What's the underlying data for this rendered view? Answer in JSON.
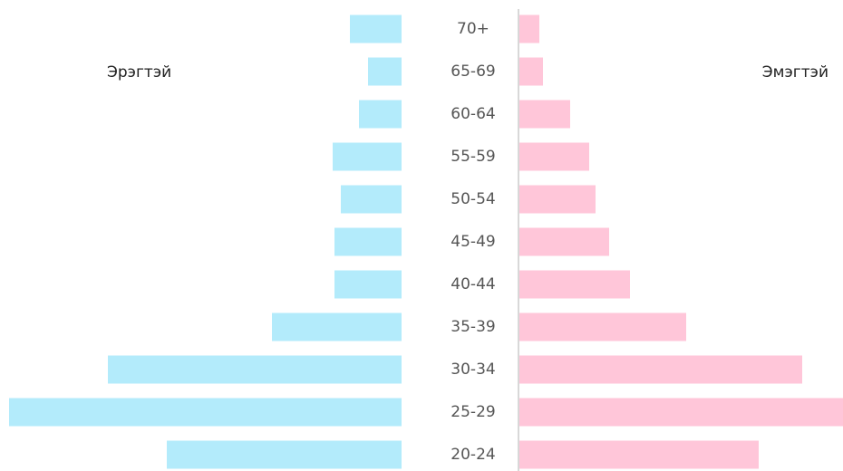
{
  "chart_data": {
    "type": "bar",
    "orientation": "horizontal",
    "layout": "population-pyramid",
    "categories": [
      "70+",
      "65-69",
      "60-64",
      "55-59",
      "50-54",
      "45-49",
      "40-44",
      "35-39",
      "30-34",
      "25-29",
      "20-24"
    ],
    "series": [
      {
        "name": "Эрэгтэй",
        "side": "left",
        "color": "#b3ebfb",
        "values": [
          57,
          37,
          47,
          76,
          67,
          74,
          74,
          143,
          324,
          433,
          259
        ]
      },
      {
        "name": "Эмэгтэй",
        "side": "right",
        "color": "#ffc6d9",
        "values": [
          22,
          26,
          56,
          77,
          84,
          99,
          122,
          184,
          312,
          357,
          264
        ]
      }
    ],
    "axis_color": "#cccccc",
    "grid": false,
    "value_axis_shown": false
  }
}
